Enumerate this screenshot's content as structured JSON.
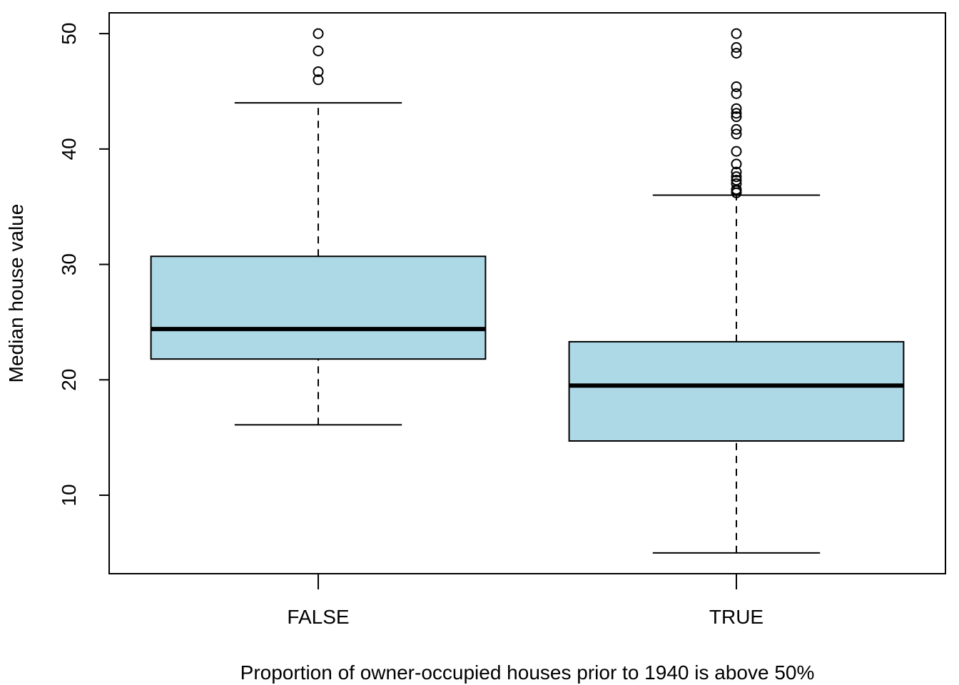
{
  "chart_data": {
    "type": "boxplot",
    "title": "",
    "xlabel": "Proportion of owner-occupied houses prior to 1940 is above 50%",
    "ylabel": "Median house value",
    "categories": [
      "FALSE",
      "TRUE"
    ],
    "ylim": [
      3.2,
      51.8
    ],
    "yticks": [
      10,
      20,
      30,
      40,
      50
    ],
    "grid": false,
    "legend": "none",
    "boxes": [
      {
        "category": "FALSE",
        "whisker_low": 16.1,
        "q1": 21.8,
        "median": 24.4,
        "q3": 30.7,
        "whisker_high": 44.0,
        "outliers": [
          46.0,
          46.7,
          48.5,
          50.0
        ]
      },
      {
        "category": "TRUE",
        "whisker_low": 5.0,
        "q1": 14.7,
        "median": 19.5,
        "q3": 23.3,
        "whisker_high": 36.0,
        "outliers": [
          36.2,
          36.4,
          36.5,
          37.0,
          37.3,
          37.6,
          38.0,
          38.7,
          39.8,
          41.3,
          41.7,
          42.8,
          43.1,
          43.5,
          44.8,
          45.4,
          48.3,
          48.8,
          50.0
        ]
      }
    ],
    "colors": {
      "box_fill": "#ADD8E6",
      "stroke": "#000000",
      "background": "#FFFFFF"
    }
  }
}
